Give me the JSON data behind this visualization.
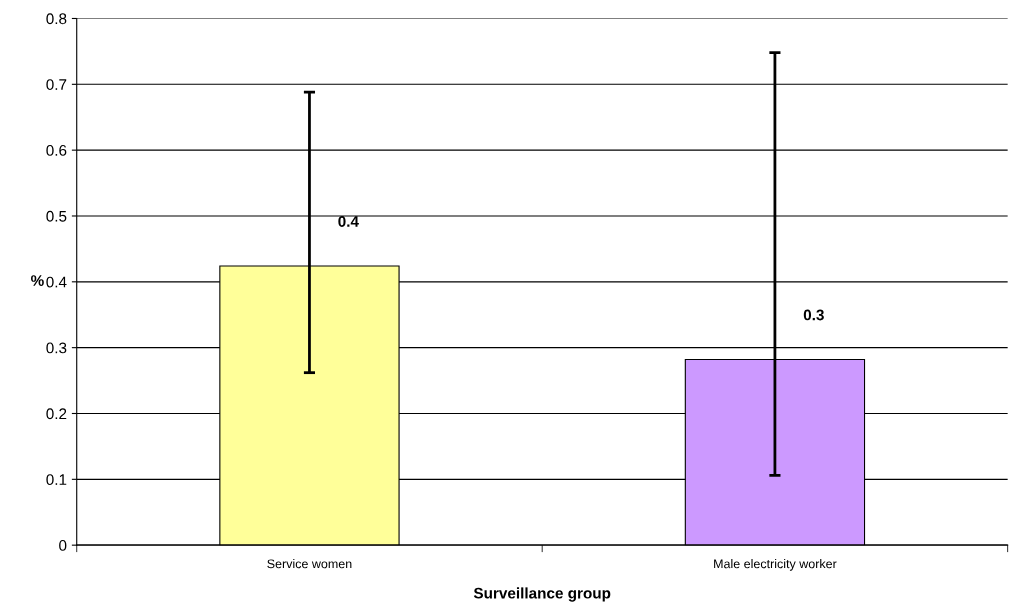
{
  "chart_data": {
    "type": "bar",
    "xlabel": "Surveillance group",
    "ylabel": "%",
    "categories": [
      "Service women",
      "Male electricity worker"
    ],
    "values": [
      0.424,
      0.282
    ],
    "colors": [
      "#ffff99",
      "#cc99ff"
    ],
    "errors": [
      [
        0.262,
        0.688
      ],
      [
        0.106,
        0.748
      ]
    ],
    "value_labels": [
      "0.4",
      "0.3"
    ],
    "ylim": [
      0,
      0.8
    ],
    "yticks": [
      0,
      0.1,
      0.2,
      0.3,
      0.4,
      0.5,
      0.6,
      0.7,
      0.8
    ],
    "grid": "y",
    "legend": false
  }
}
